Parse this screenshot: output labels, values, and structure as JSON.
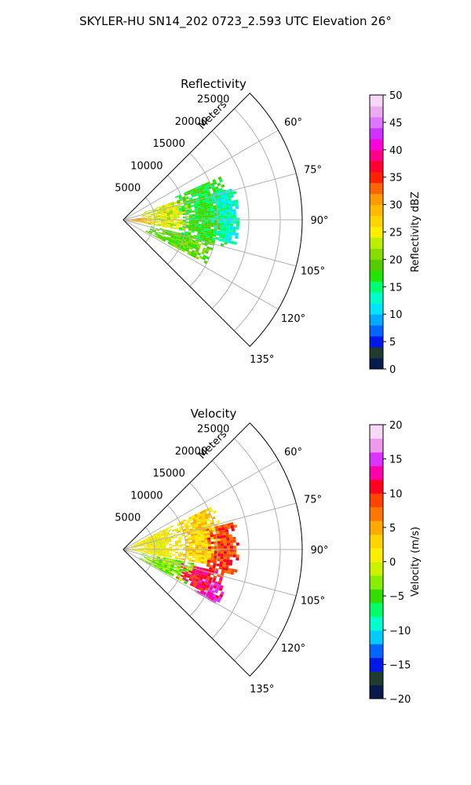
{
  "suptitle": "SKYLER-HU  SN14_202  0723_2.593 UTC Elevation 26°",
  "chart_data": [
    {
      "type": "heatmap",
      "subtype": "polar-sector",
      "title": "Reflectivity",
      "range_label": "Meters",
      "range_ticks": [
        5000,
        10000,
        15000,
        20000,
        25000
      ],
      "range_tick_labels": [
        "5000",
        "10000",
        "15000",
        "20000",
        "25000"
      ],
      "range_max": 28500,
      "angle_range_deg": [
        45,
        135
      ],
      "angle_ticks": [
        60,
        75,
        90,
        105,
        120,
        135
      ],
      "angle_tick_labels": [
        "60°",
        "75°",
        "90°",
        "105°",
        "120°",
        "135°"
      ],
      "grid": true,
      "colorbar": {
        "label": "Reflectivity dBZ",
        "vmin": 0,
        "vmax": 50,
        "ticks": [
          0,
          5,
          10,
          15,
          20,
          25,
          30,
          35,
          40,
          45,
          50
        ],
        "tick_labels": [
          "0",
          "5",
          "10",
          "15",
          "20",
          "25",
          "30",
          "35",
          "40",
          "45",
          "50"
        ],
        "bands": [
          {
            "lo": 0,
            "hi": 2,
            "color": "#0a1a4d"
          },
          {
            "lo": 2,
            "hi": 4,
            "color": "#1e3d2e"
          },
          {
            "lo": 4,
            "hi": 6,
            "color": "#0019e6"
          },
          {
            "lo": 6,
            "hi": 8,
            "color": "#0066ff"
          },
          {
            "lo": 8,
            "hi": 10,
            "color": "#00aaff"
          },
          {
            "lo": 10,
            "hi": 12,
            "color": "#00e5ff"
          },
          {
            "lo": 12,
            "hi": 14,
            "color": "#00ffc8"
          },
          {
            "lo": 14,
            "hi": 16,
            "color": "#00ff6e"
          },
          {
            "lo": 16,
            "hi": 18,
            "color": "#22e600"
          },
          {
            "lo": 18,
            "hi": 20,
            "color": "#55cc00"
          },
          {
            "lo": 20,
            "hi": 22,
            "color": "#88dd00"
          },
          {
            "lo": 22,
            "hi": 24,
            "color": "#bbee00"
          },
          {
            "lo": 24,
            "hi": 26,
            "color": "#ffee00"
          },
          {
            "lo": 26,
            "hi": 28,
            "color": "#ffd400"
          },
          {
            "lo": 28,
            "hi": 30,
            "color": "#ffbb00"
          },
          {
            "lo": 30,
            "hi": 32,
            "color": "#ff9900"
          },
          {
            "lo": 32,
            "hi": 34,
            "color": "#ff6600"
          },
          {
            "lo": 34,
            "hi": 36,
            "color": "#ff2200"
          },
          {
            "lo": 36,
            "hi": 38,
            "color": "#ff0033"
          },
          {
            "lo": 38,
            "hi": 40,
            "color": "#ff0088"
          },
          {
            "lo": 40,
            "hi": 42,
            "color": "#ff00dd"
          },
          {
            "lo": 42,
            "hi": 44,
            "color": "#cc33ff"
          },
          {
            "lo": 44,
            "hi": 46,
            "color": "#dd77ff"
          },
          {
            "lo": 46,
            "hi": 48,
            "color": "#eeaaee"
          },
          {
            "lo": 48,
            "hi": 50,
            "color": "#f7d9f7"
          }
        ]
      },
      "echo_regions": [
        {
          "r_min": 300,
          "r_max": 4500,
          "az_min": 84,
          "az_max": 98,
          "value": 30
        },
        {
          "r_min": 3000,
          "r_max": 11000,
          "az_min": 70,
          "az_max": 100,
          "value": 24
        },
        {
          "r_min": 9000,
          "r_max": 17000,
          "az_min": 66,
          "az_max": 104,
          "value": 17
        },
        {
          "r_min": 4000,
          "r_max": 15000,
          "az_min": 103,
          "az_max": 118,
          "value": 19
        },
        {
          "r_min": 14000,
          "r_max": 18500,
          "az_min": 74,
          "az_max": 102,
          "value": 13
        }
      ]
    },
    {
      "type": "heatmap",
      "subtype": "polar-sector",
      "title": "Velocity",
      "range_label": "Meters",
      "range_ticks": [
        5000,
        10000,
        15000,
        20000,
        25000
      ],
      "range_tick_labels": [
        "5000",
        "10000",
        "15000",
        "20000",
        "25000"
      ],
      "range_max": 28500,
      "angle_range_deg": [
        45,
        135
      ],
      "angle_ticks": [
        60,
        75,
        90,
        105,
        120,
        135
      ],
      "angle_tick_labels": [
        "60°",
        "75°",
        "90°",
        "105°",
        "120°",
        "135°"
      ],
      "grid": true,
      "colorbar": {
        "label": "Velocity (m/s)",
        "vmin": -20,
        "vmax": 20,
        "ticks": [
          -20,
          -15,
          -10,
          -5,
          0,
          5,
          10,
          15,
          20
        ],
        "tick_labels": [
          "−20",
          "−15",
          "−10",
          "−5",
          "0",
          "5",
          "10",
          "15",
          "20"
        ],
        "bands": [
          {
            "lo": -20,
            "hi": -18,
            "color": "#0a1a4d"
          },
          {
            "lo": -18,
            "hi": -16,
            "color": "#1e3d2e"
          },
          {
            "lo": -16,
            "hi": -14,
            "color": "#0019e6"
          },
          {
            "lo": -14,
            "hi": -12,
            "color": "#0066ff"
          },
          {
            "lo": -12,
            "hi": -10,
            "color": "#00ccff"
          },
          {
            "lo": -10,
            "hi": -8,
            "color": "#00ffcc"
          },
          {
            "lo": -8,
            "hi": -6,
            "color": "#00ff66"
          },
          {
            "lo": -6,
            "hi": -4,
            "color": "#33dd00"
          },
          {
            "lo": -4,
            "hi": -2,
            "color": "#88ee00"
          },
          {
            "lo": -2,
            "hi": 0,
            "color": "#ccf200"
          },
          {
            "lo": 0,
            "hi": 2,
            "color": "#ffee00"
          },
          {
            "lo": 2,
            "hi": 4,
            "color": "#ffd400"
          },
          {
            "lo": 4,
            "hi": 6,
            "color": "#ffaa00"
          },
          {
            "lo": 6,
            "hi": 8,
            "color": "#ff7700"
          },
          {
            "lo": 8,
            "hi": 10,
            "color": "#ff4400"
          },
          {
            "lo": 10,
            "hi": 12,
            "color": "#ff0022"
          },
          {
            "lo": 12,
            "hi": 14,
            "color": "#ff00aa"
          },
          {
            "lo": 14,
            "hi": 16,
            "color": "#dd33ff"
          },
          {
            "lo": 16,
            "hi": 18,
            "color": "#ee99ee"
          },
          {
            "lo": 18,
            "hi": 20,
            "color": "#f7d9f7"
          }
        ]
      },
      "echo_regions": [
        {
          "r_min": 300,
          "r_max": 9000,
          "az_min": 64,
          "az_max": 100,
          "value": 1
        },
        {
          "r_min": 9000,
          "r_max": 16000,
          "az_min": 64,
          "az_max": 100,
          "value": 3
        },
        {
          "r_min": 13500,
          "r_max": 18500,
          "az_min": 76,
          "az_max": 102,
          "value": 9
        },
        {
          "r_min": 3000,
          "r_max": 12000,
          "az_min": 101,
          "az_max": 118,
          "value": -3
        },
        {
          "r_min": 9500,
          "r_max": 16500,
          "az_min": 103,
          "az_max": 117,
          "value": 11
        },
        {
          "r_min": 13000,
          "r_max": 17500,
          "az_min": 110,
          "az_max": 120,
          "value": 14
        }
      ]
    }
  ]
}
